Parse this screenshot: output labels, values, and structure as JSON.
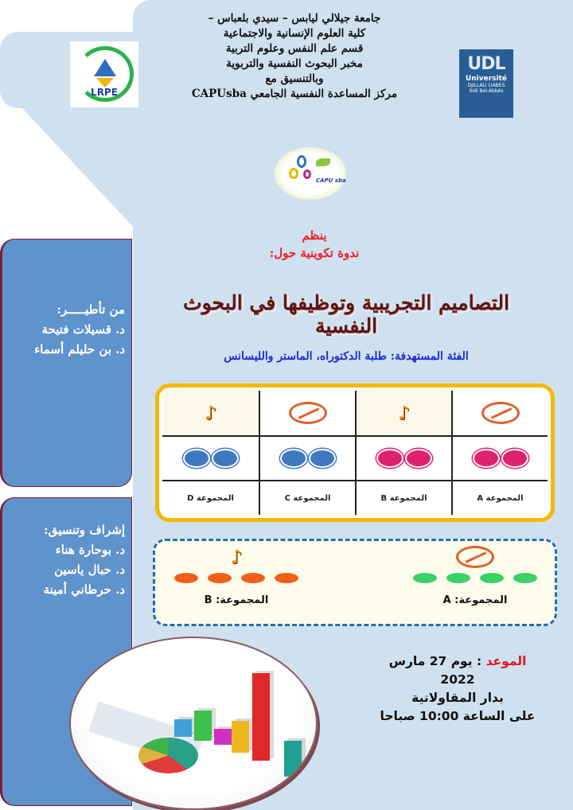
{
  "header": {
    "lines": [
      "جامعة جيلالي ليابس – سيدي بلعباس –",
      "كلية العلوم الإنسانية والاجتماعية",
      "قسم علم النفس وعلوم التربية",
      "مخبر البحوث النفسية والتربوية",
      "وبالتنسيق مع",
      "مركز المساعدة النفسية الجامعي CAPUsba"
    ]
  },
  "logos": {
    "lab": "LRPE",
    "university": {
      "top": "UDL",
      "name": "Université",
      "sub": "DJILLALI LIABES",
      "city": "Sidi Bel-Abbès"
    },
    "center": "CAPU sba"
  },
  "event": {
    "organizes": "ينظم",
    "type": "ندوة تكوينية حول:",
    "title": "التصاميم التجريبية وتوظيفها في البحوث النفسية",
    "audience": "الفئة المستهدفة: طلبة الدكتوراه، الماستر والليسانس"
  },
  "supervision": {
    "heading": "من تأطيـــــر:",
    "names": [
      "د. قسيلات فتيحة",
      "د. بن حليلم أسماء"
    ]
  },
  "coordination": {
    "heading": "إشراف وتنسيق:",
    "names": [
      "د. بوحارة هناء",
      "د. حبال ياسين",
      "د. حرطاني أمينة"
    ]
  },
  "design_table": {
    "groups": [
      {
        "label": "المجموعة A",
        "icon": "ban-icon",
        "dot_color": "#e0226e"
      },
      {
        "label": "المجموعة B",
        "icon": "music-note-icon",
        "dot_color": "#e0226e"
      },
      {
        "label": "المجموعة C",
        "icon": "ban-icon",
        "dot_color": "#3f78c0"
      },
      {
        "label": "المجموعة D",
        "icon": "music-note-icon",
        "dot_color": "#3f78c0"
      }
    ]
  },
  "design_two": {
    "A": {
      "label": "المجموعة: A",
      "icon": "ban-icon",
      "color": "#3ad06a"
    },
    "B": {
      "label": "المجموعة: B",
      "icon": "music-note-icon",
      "color": "#f0601a"
    }
  },
  "schedule": {
    "label": "الموعد",
    "day": ": يوم 27 مارس",
    "year": "2022",
    "place": "بدار المقاولاتية",
    "time": "على الساعة 10:00 صباحا"
  },
  "colors": {
    "panel": "#5e93cc",
    "background": "#cfe0ee",
    "accent_yellow": "#f6b800",
    "dashed_blue": "#1f6fb8",
    "red": "#f0202a"
  }
}
